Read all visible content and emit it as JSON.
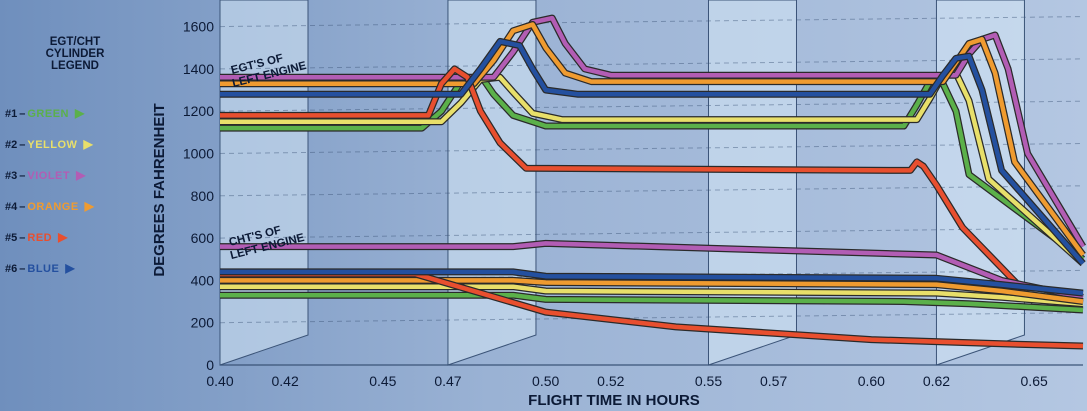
{
  "chart_data": {
    "type": "line",
    "title": "",
    "xlabel": "FLIGHT TIME IN HOURS",
    "ylabel": "DEGREES FAHRENHEIT",
    "xlim": [
      0.4,
      0.665
    ],
    "ylim": [
      0,
      1650
    ],
    "x_ticks": [
      "0.40",
      "0.42",
      "0.45",
      "0.47",
      "0.50",
      "0.52",
      "0.55",
      "0.57",
      "0.60",
      "0.62",
      "0.65"
    ],
    "x_tick_values": [
      0.4,
      0.42,
      0.45,
      0.47,
      0.5,
      0.52,
      0.55,
      0.57,
      0.6,
      0.62,
      0.65
    ],
    "y_ticks": [
      "0",
      "200",
      "400",
      "600",
      "800",
      "1000",
      "1200",
      "1400",
      "1600"
    ],
    "y_tick_values": [
      0,
      200,
      400,
      600,
      800,
      1000,
      1200,
      1400,
      1600
    ],
    "grid": true,
    "legend_position": "left",
    "annotations": {
      "egt": [
        "EGT'S OF",
        "LEFT ENGINE"
      ],
      "cht": [
        "CHT'S OF",
        "LEFT ENGINE"
      ]
    },
    "series": [
      {
        "group": "egt",
        "color": "#5bb04a",
        "x": [
          0.4,
          0.462,
          0.468,
          0.474,
          0.48,
          0.484,
          0.49,
          0.5,
          0.61,
          0.614,
          0.618,
          0.622,
          0.626,
          0.63,
          0.665
        ],
        "y": [
          1120,
          1120,
          1200,
          1340,
          1370,
          1280,
          1180,
          1130,
          1130,
          1230,
          1340,
          1330,
          1200,
          900,
          500
        ]
      },
      {
        "group": "egt",
        "color": "#e8df6a",
        "x": [
          0.4,
          0.468,
          0.474,
          0.48,
          0.486,
          0.49,
          0.496,
          0.505,
          0.614,
          0.618,
          0.622,
          0.626,
          0.63,
          0.636,
          0.665
        ],
        "y": [
          1150,
          1150,
          1240,
          1350,
          1360,
          1290,
          1190,
          1160,
          1160,
          1260,
          1370,
          1380,
          1250,
          880,
          480
        ]
      },
      {
        "group": "egt",
        "color": "#b25db4",
        "x": [
          0.4,
          0.484,
          0.49,
          0.496,
          0.502,
          0.506,
          0.512,
          0.52,
          0.626,
          0.63,
          0.634,
          0.638,
          0.642,
          0.648,
          0.665
        ],
        "y": [
          1360,
          1360,
          1480,
          1620,
          1640,
          1520,
          1400,
          1370,
          1370,
          1470,
          1540,
          1560,
          1400,
          1000,
          560
        ]
      },
      {
        "group": "egt",
        "color": "#ef9b30",
        "x": [
          0.4,
          0.478,
          0.484,
          0.49,
          0.496,
          0.5,
          0.506,
          0.514,
          0.622,
          0.626,
          0.63,
          0.634,
          0.638,
          0.644,
          0.665
        ],
        "y": [
          1330,
          1330,
          1440,
          1580,
          1610,
          1500,
          1380,
          1340,
          1340,
          1430,
          1520,
          1540,
          1380,
          960,
          520
        ]
      },
      {
        "group": "egt",
        "color": "#e84f2f",
        "x": [
          0.4,
          0.464,
          0.468,
          0.472,
          0.476,
          0.48,
          0.486,
          0.494,
          0.61,
          0.612,
          0.614,
          0.616,
          0.62,
          0.628,
          0.65
        ],
        "y": [
          1180,
          1180,
          1330,
          1400,
          1360,
          1200,
          1050,
          930,
          920,
          920,
          960,
          940,
          850,
          650,
          300
        ]
      },
      {
        "group": "egt",
        "color": "#24509f",
        "x": [
          0.4,
          0.474,
          0.48,
          0.486,
          0.492,
          0.496,
          0.5,
          0.51,
          0.618,
          0.622,
          0.626,
          0.63,
          0.634,
          0.64,
          0.665
        ],
        "y": [
          1280,
          1280,
          1400,
          1530,
          1510,
          1400,
          1300,
          1280,
          1280,
          1370,
          1450,
          1460,
          1300,
          920,
          480
        ]
      },
      {
        "group": "cht",
        "color": "#5bb04a",
        "x": [
          0.4,
          0.49,
          0.5,
          0.61,
          0.63,
          0.665
        ],
        "y": [
          330,
          330,
          310,
          300,
          290,
          260
        ]
      },
      {
        "group": "cht",
        "color": "#e8df6a",
        "x": [
          0.4,
          0.49,
          0.5,
          0.62,
          0.64,
          0.665
        ],
        "y": [
          370,
          370,
          350,
          340,
          320,
          290
        ]
      },
      {
        "group": "cht",
        "color": "#b25db4",
        "x": [
          0.4,
          0.49,
          0.5,
          0.62,
          0.64,
          0.665
        ],
        "y": [
          560,
          560,
          575,
          520,
          400,
          320
        ]
      },
      {
        "group": "cht",
        "color": "#ef9b30",
        "x": [
          0.4,
          0.49,
          0.5,
          0.62,
          0.64,
          0.665
        ],
        "y": [
          400,
          400,
          390,
          380,
          350,
          300
        ]
      },
      {
        "group": "cht",
        "color": "#e84f2f",
        "x": [
          0.4,
          0.46,
          0.5,
          0.54,
          0.6,
          0.64,
          0.665
        ],
        "y": [
          430,
          430,
          250,
          180,
          120,
          100,
          90
        ]
      },
      {
        "group": "cht",
        "color": "#24509f",
        "x": [
          0.4,
          0.49,
          0.5,
          0.62,
          0.64,
          0.665
        ],
        "y": [
          440,
          440,
          420,
          410,
          380,
          340
        ]
      }
    ]
  },
  "legend": {
    "title": [
      "EGT/CHT",
      "CYLINDER",
      "LEGEND"
    ],
    "items": [
      {
        "num": "#1",
        "color": "GREEN",
        "hex": "#5bb04a"
      },
      {
        "num": "#2",
        "color": "YELLOW",
        "hex": "#e8df6a"
      },
      {
        "num": "#3",
        "color": "VIOLET",
        "hex": "#b25db4"
      },
      {
        "num": "#4",
        "color": "ORANGE",
        "hex": "#ef9b30"
      },
      {
        "num": "#5",
        "color": "RED",
        "hex": "#e84f2f"
      },
      {
        "num": "#6",
        "color": "BLUE",
        "hex": "#24509f"
      }
    ]
  }
}
